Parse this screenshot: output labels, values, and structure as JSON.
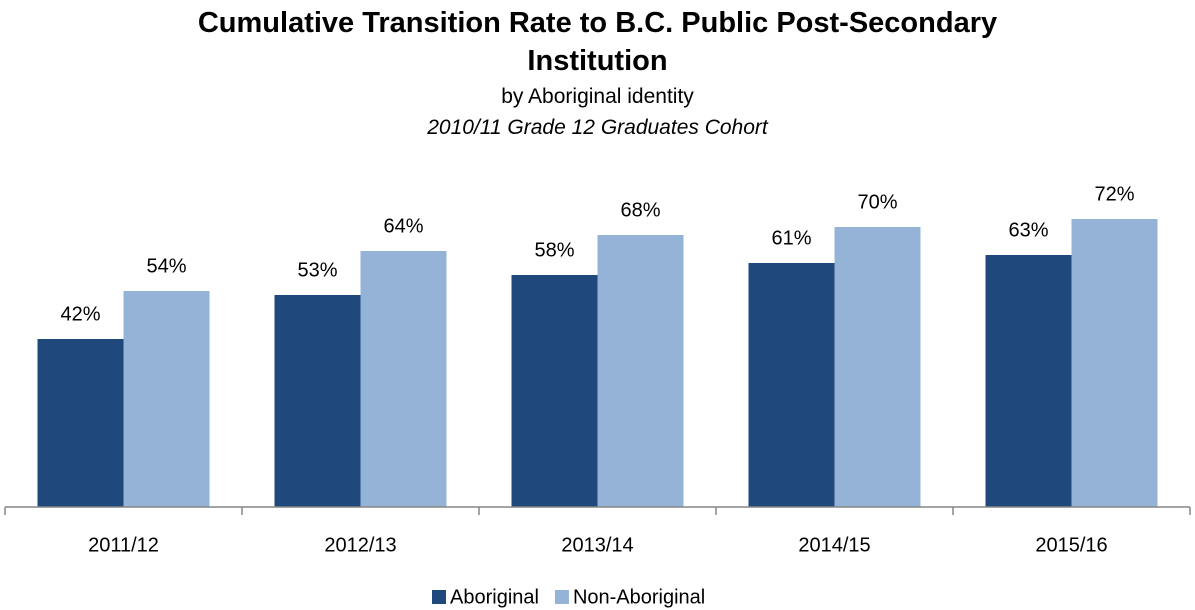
{
  "chart_data": {
    "type": "bar",
    "title": "Cumulative Transition Rate to B.C. Public Post-Secondary Institution",
    "subtitle": "by Aboriginal identity",
    "annotation": "2010/11 Grade 12 Graduates Cohort",
    "categories": [
      "2011/12",
      "2012/13",
      "2013/14",
      "2014/15",
      "2015/16"
    ],
    "series": [
      {
        "name": "Aboriginal",
        "color": "#1f497d",
        "values": [
          42,
          53,
          58,
          61,
          63
        ],
        "value_labels": [
          "42%",
          "53%",
          "58%",
          "61%",
          "63%"
        ]
      },
      {
        "name": "Non-Aboriginal",
        "color": "#95b3d7",
        "values": [
          54,
          64,
          68,
          70,
          72
        ],
        "value_labels": [
          "54%",
          "64%",
          "68%",
          "70%",
          "72%"
        ]
      }
    ],
    "ylim": [
      0,
      100
    ],
    "legend": "bottom"
  }
}
